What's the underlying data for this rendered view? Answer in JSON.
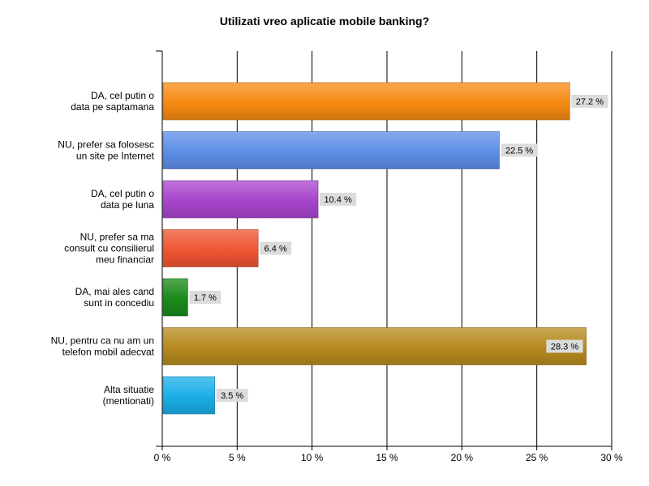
{
  "chart_data": {
    "type": "bar",
    "orientation": "horizontal",
    "title": "Utilizati vreo aplicatie mobile banking?",
    "categories": [
      "DA, cel putin o data pe saptamana",
      "NU, prefer sa folosesc un site pe Internet",
      "DA, cel putin o data pe luna",
      "NU, prefer sa ma consult cu consilierul meu financiar",
      "DA, mai ales cand sunt in concediu",
      "NU, pentru ca nu am un telefon mobil adecvat",
      "Alta situatie (mentionati)"
    ],
    "category_lines": [
      [
        "DA, cel putin o",
        "data pe saptamana"
      ],
      [
        "NU, prefer sa folosesc",
        "un site pe Internet"
      ],
      [
        "DA, cel putin o",
        "data pe luna"
      ],
      [
        "NU, prefer sa ma",
        "consult cu consilierul",
        "meu financiar"
      ],
      [
        "DA, mai ales cand",
        "sunt in concediu"
      ],
      [
        "NU, pentru ca nu am un",
        "telefon mobil adecvat"
      ],
      [
        "Alta situatie",
        "(mentionati)"
      ]
    ],
    "values": [
      27.2,
      22.5,
      10.4,
      6.4,
      1.7,
      28.3,
      3.5
    ],
    "value_labels": [
      "27.2 %",
      "22.5 %",
      "10.4 %",
      "6.4 %",
      "1.7 %",
      "28.3 %",
      "3.5 %"
    ],
    "colors": [
      "#f58a12",
      "#5c8ee6",
      "#a844cc",
      "#ee5533",
      "#1a8a1a",
      "#b58a1e",
      "#1aaee8"
    ],
    "xlim": [
      0,
      30
    ],
    "x_ticks": [
      0,
      5,
      10,
      15,
      20,
      25,
      30
    ],
    "x_tick_labels": [
      "0 %",
      "5 %",
      "10 %",
      "15 %",
      "20 %",
      "25 %",
      "30 %"
    ],
    "grid": true
  }
}
